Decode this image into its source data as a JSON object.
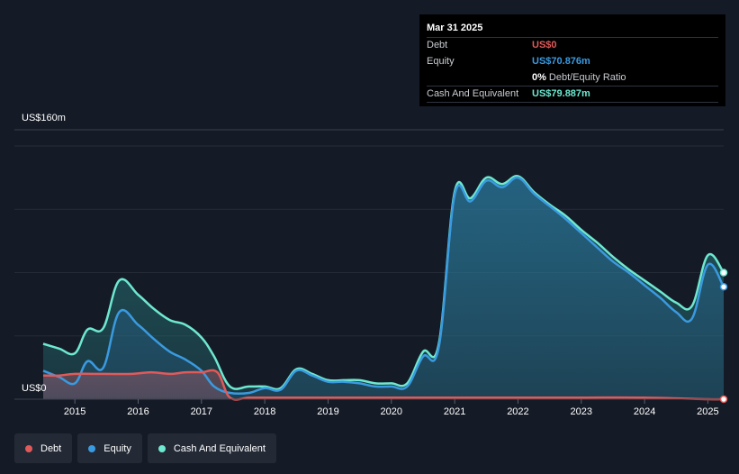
{
  "tooltip": {
    "date": "Mar 31 2025",
    "debt_label": "Debt",
    "debt_value": "US$0",
    "equity_label": "Equity",
    "equity_value": "US$70.876m",
    "ratio_value": "0%",
    "ratio_label": "Debt/Equity Ratio",
    "cash_label": "Cash And Equivalent",
    "cash_value": "US$79.887m"
  },
  "legend": [
    {
      "label": "Debt",
      "color": "#e05a5a"
    },
    {
      "label": "Equity",
      "color": "#3a9ae0"
    },
    {
      "label": "Cash And Equivalent",
      "color": "#6ee8d0"
    }
  ],
  "chart_data": {
    "type": "area",
    "y_top_label": "US$160m",
    "y_bottom_label": "US$0",
    "ylim": [
      0,
      160
    ],
    "xlim": [
      2014.5,
      2025.25
    ],
    "x_ticks": [
      "2015",
      "2016",
      "2017",
      "2018",
      "2019",
      "2020",
      "2021",
      "2022",
      "2023",
      "2024",
      "2025"
    ],
    "grid": true,
    "legend_position": "bottom-left",
    "series": [
      {
        "name": "Cash And Equivalent",
        "color": "#6ee8d0",
        "x": [
          2014.5,
          2014.75,
          2015.0,
          2015.2,
          2015.45,
          2015.7,
          2016.0,
          2016.25,
          2016.5,
          2016.75,
          2017.0,
          2017.2,
          2017.45,
          2017.75,
          2018.0,
          2018.25,
          2018.5,
          2018.75,
          2019.0,
          2019.25,
          2019.5,
          2019.75,
          2020.0,
          2020.25,
          2020.5,
          2020.75,
          2021.0,
          2021.25,
          2021.5,
          2021.75,
          2022.0,
          2022.25,
          2022.5,
          2022.75,
          2023.0,
          2023.25,
          2023.5,
          2023.75,
          2024.0,
          2024.25,
          2024.5,
          2024.75,
          2025.0,
          2025.25
        ],
        "values": [
          35,
          32,
          29,
          44,
          45,
          75,
          66,
          57,
          50,
          47,
          39,
          27,
          8,
          8,
          8,
          7,
          19,
          16,
          12,
          12,
          12,
          10,
          10,
          10,
          30,
          35,
          131,
          127,
          140,
          136,
          141,
          131,
          123,
          116,
          107,
          99,
          90,
          82,
          75,
          68,
          61,
          59,
          91,
          80
        ]
      },
      {
        "name": "Equity",
        "color": "#3a9ae0",
        "x": [
          2014.5,
          2014.75,
          2015.0,
          2015.2,
          2015.45,
          2015.7,
          2016.0,
          2016.25,
          2016.5,
          2016.75,
          2017.0,
          2017.2,
          2017.45,
          2017.75,
          2018.0,
          2018.25,
          2018.5,
          2018.75,
          2019.0,
          2019.25,
          2019.5,
          2019.75,
          2020.0,
          2020.25,
          2020.5,
          2020.75,
          2021.0,
          2021.25,
          2021.5,
          2021.75,
          2022.0,
          2022.25,
          2022.5,
          2022.75,
          2023.0,
          2023.25,
          2023.5,
          2023.75,
          2024.0,
          2024.25,
          2024.5,
          2024.75,
          2025.0,
          2025.25
        ],
        "values": [
          18,
          14,
          10,
          24,
          20,
          55,
          47,
          38,
          30,
          25,
          18,
          8,
          4,
          4,
          7,
          6,
          18,
          15,
          11,
          11,
          10,
          8,
          8,
          8,
          27,
          33,
          129,
          125,
          138,
          134,
          140,
          130,
          122,
          114,
          105,
          96,
          87,
          80,
          72,
          64,
          55,
          51,
          85,
          71
        ]
      },
      {
        "name": "Debt",
        "color": "#e05a5a",
        "x": [
          2014.5,
          2014.75,
          2015.0,
          2015.45,
          2015.9,
          2016.2,
          2016.5,
          2016.75,
          2017.0,
          2017.25,
          2017.45,
          2017.75,
          2018.0,
          2018.5,
          2019.0,
          2020.0,
          2020.75,
          2021.0,
          2022.0,
          2023.0,
          2024.0,
          2025.0,
          2025.25
        ],
        "values": [
          15,
          15,
          16,
          16,
          16,
          17,
          16,
          17,
          17,
          17,
          1,
          1,
          1,
          1,
          1,
          1,
          1,
          1,
          1,
          1,
          1,
          0,
          0
        ]
      }
    ]
  }
}
